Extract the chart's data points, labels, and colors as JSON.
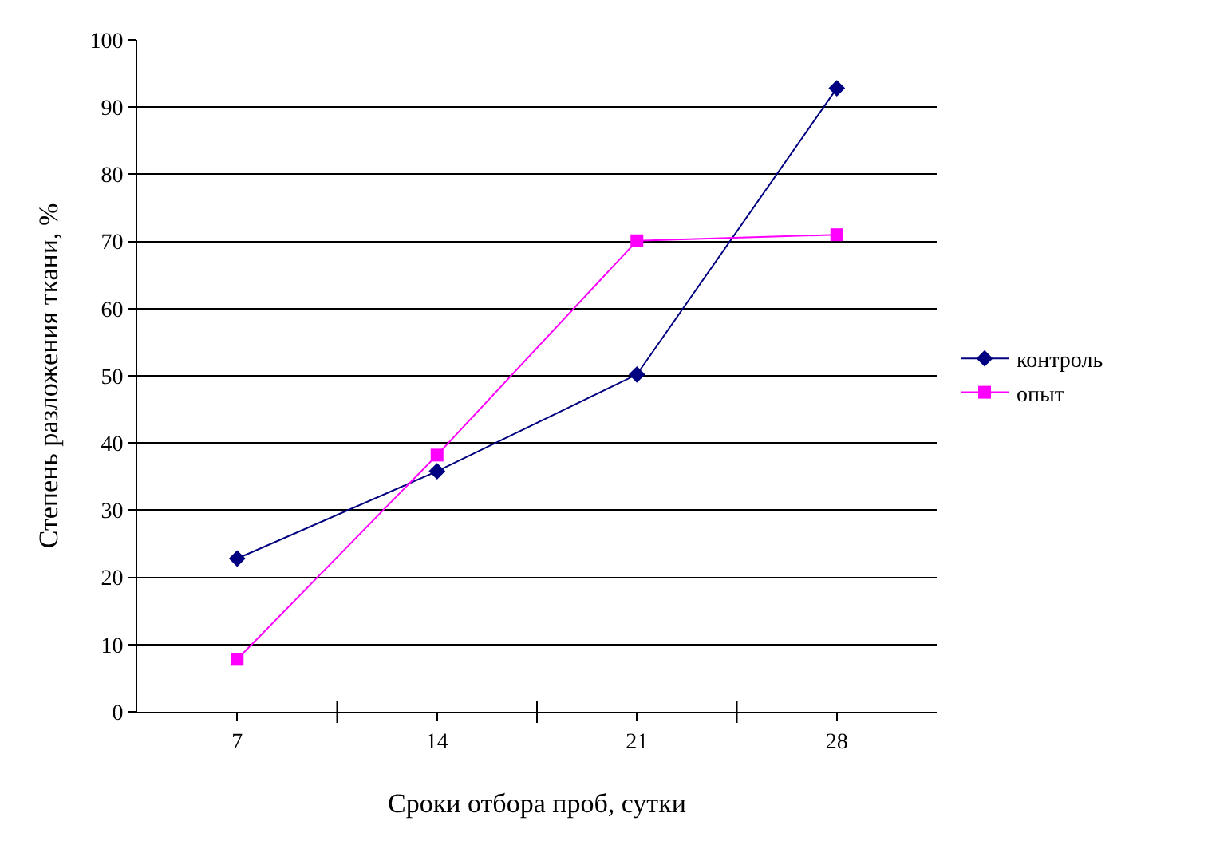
{
  "chart_data": {
    "type": "line",
    "xlabel": "Сроки отбора проб, сутки",
    "ylabel": "Степень разложения ткани, %",
    "categories": [
      "7",
      "14",
      "21",
      "28"
    ],
    "series": [
      {
        "name": "контроль",
        "color": "#000080",
        "marker": "diamond",
        "values": [
          22.8,
          35.8,
          50.2,
          92.8
        ]
      },
      {
        "name": "опыт",
        "color": "#ff00ff",
        "marker": "square",
        "values": [
          7.8,
          38.2,
          70.1,
          71.0
        ]
      }
    ],
    "ylim": [
      0,
      100
    ],
    "yticks": [
      0,
      10,
      20,
      30,
      40,
      50,
      60,
      70,
      80,
      90,
      100
    ],
    "grid": "y",
    "legend": "right",
    "line_style": "solid"
  }
}
